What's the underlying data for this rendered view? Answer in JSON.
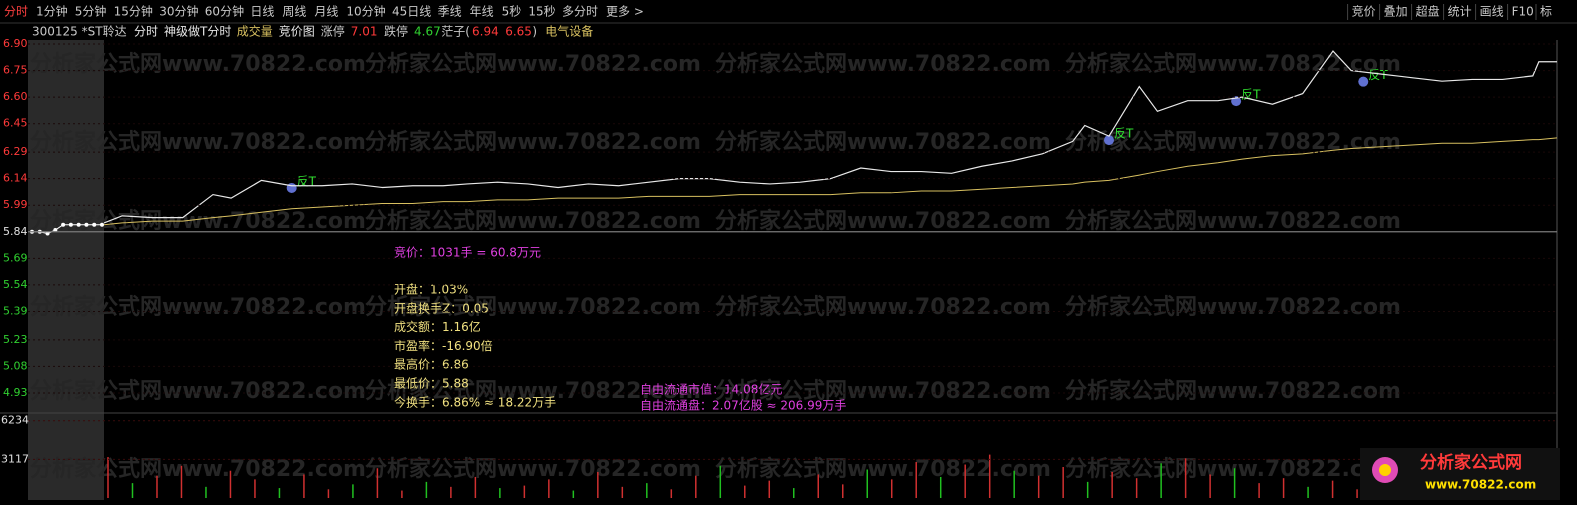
{
  "toolbar": {
    "periods": [
      "分时",
      "1分钟",
      "5分钟",
      "15分钟",
      "30分钟",
      "60分钟",
      "日线",
      "周线",
      "月线",
      "10分钟",
      "45日线",
      "季线",
      "年线",
      "5秒",
      "15秒",
      "多分时",
      "更多 >"
    ],
    "buttons": [
      "竞价",
      "叠加",
      "超盘",
      "统计",
      "画线",
      "F10",
      "标"
    ]
  },
  "info_bar": {
    "code": "300125 *ST聆达",
    "items": [
      "分时",
      "神级做T分时",
      "成交量",
      "竞价图"
    ],
    "limit_up_label": "涨停",
    "limit_up": "7.01",
    "limit_down_label": "跌停",
    "limit_down": "4.67",
    "range_label": "茫子(",
    "range_high": "6.94",
    "range_low": "6.65",
    "range_close": ")",
    "sector": "电气设备"
  },
  "chart_data": {
    "type": "line",
    "xlim": [
      0,
      240
    ],
    "baseline": 5.84,
    "ylim": [
      4.93,
      6.9
    ],
    "yticks": [
      {
        "value": 6.9,
        "label": "6.90"
      },
      6.75,
      {
        "value": 6.6,
        "label": "6.60"
      },
      6.45,
      6.29,
      6.14,
      5.99,
      5.84,
      5.69,
      5.54,
      5.39,
      5.23,
      5.08,
      4.93
    ],
    "x": [
      0,
      3,
      8,
      13,
      18,
      21,
      26,
      31,
      36,
      41,
      46,
      51,
      56,
      60,
      65,
      70,
      75,
      80,
      85,
      90,
      95,
      100,
      105,
      110,
      115,
      120,
      125,
      130,
      135,
      140,
      145,
      150,
      155,
      160,
      162,
      166,
      171,
      174,
      179,
      184,
      188,
      193,
      198,
      203,
      206,
      211,
      216,
      221,
      226,
      231,
      236,
      237,
      240
    ],
    "series": [
      {
        "name": "价格",
        "color": "#e8e8e8",
        "values": [
          5.89,
          5.93,
          5.92,
          5.92,
          6.05,
          6.03,
          6.13,
          6.1,
          6.1,
          6.11,
          6.09,
          6.1,
          6.1,
          6.11,
          6.12,
          6.11,
          6.09,
          6.11,
          6.1,
          6.12,
          6.14,
          6.14,
          6.12,
          6.11,
          6.12,
          6.14,
          6.2,
          6.18,
          6.18,
          6.17,
          6.21,
          6.24,
          6.28,
          6.35,
          6.44,
          6.38,
          6.66,
          6.52,
          6.58,
          6.58,
          6.6,
          6.56,
          6.62,
          6.86,
          6.75,
          6.73,
          6.71,
          6.69,
          6.7,
          6.7,
          6.72,
          6.8,
          6.8
        ]
      },
      {
        "name": "均价",
        "color": "#d8c060",
        "values": [
          5.88,
          5.89,
          5.9,
          5.9,
          5.92,
          5.93,
          5.95,
          5.97,
          5.98,
          5.99,
          6.0,
          6.0,
          6.01,
          6.01,
          6.02,
          6.02,
          6.03,
          6.03,
          6.03,
          6.04,
          6.04,
          6.04,
          6.05,
          6.05,
          6.05,
          6.05,
          6.06,
          6.06,
          6.07,
          6.07,
          6.08,
          6.09,
          6.1,
          6.11,
          6.12,
          6.13,
          6.16,
          6.18,
          6.21,
          6.23,
          6.25,
          6.27,
          6.28,
          6.3,
          6.31,
          6.32,
          6.33,
          6.34,
          6.34,
          6.35,
          6.36,
          6.36,
          6.37
        ]
      }
    ],
    "auction": {
      "color": "#ffffff",
      "values": [
        5.84,
        5.84,
        5.83,
        5.85,
        5.88,
        5.88,
        5.88,
        5.88,
        5.88,
        5.88
      ]
    },
    "markers": [
      {
        "label": "反T",
        "x": 31,
        "y": 6.11
      },
      {
        "label": "反T",
        "x": 166,
        "y": 6.38
      },
      {
        "label": "反T",
        "x": 187,
        "y": 6.6
      },
      {
        "label": "反T",
        "x": 208,
        "y": 6.71
      }
    ]
  },
  "volume": {
    "ylim": [
      0,
      6856
    ],
    "yticks": [
      6234,
      3117
    ],
    "values": [
      3300,
      1200,
      1800,
      2600,
      900,
      2200,
      1500,
      800,
      1900,
      700,
      1100,
      2400,
      600,
      1300,
      900,
      1700,
      800,
      1000,
      1500,
      600,
      2100,
      900,
      1200,
      700,
      1800,
      2600,
      1000,
      1400,
      800,
      1900,
      1100,
      2300,
      1500,
      2900,
      1700,
      2700,
      3500,
      2200,
      1800,
      2500,
      1300,
      2100,
      1600,
      2800,
      3200,
      1900,
      2400,
      1200,
      1600,
      900,
      1400,
      700,
      1100,
      800,
      1300,
      600,
      900,
      500,
      1000,
      2000
    ]
  },
  "info_panel": {
    "auction": "竞价：1031手 = 60.8万元",
    "lines": [
      "开盘：1.03%",
      "开盘换手Z：0.05",
      "成交额：1.16亿",
      "市盈率：-16.90倍",
      "最高价：6.86",
      "最低价：5.88",
      "今换手：6.86% ≈ 18.22万手"
    ],
    "free_float": [
      "自由流通市值：14.08亿元",
      "自由流通盘：2.07亿股 ≈ 206.99万手"
    ]
  },
  "watermark": "分析家公式网www.70822.com",
  "logo": {
    "name": "分析家公式网",
    "url": "www.70822.com"
  }
}
